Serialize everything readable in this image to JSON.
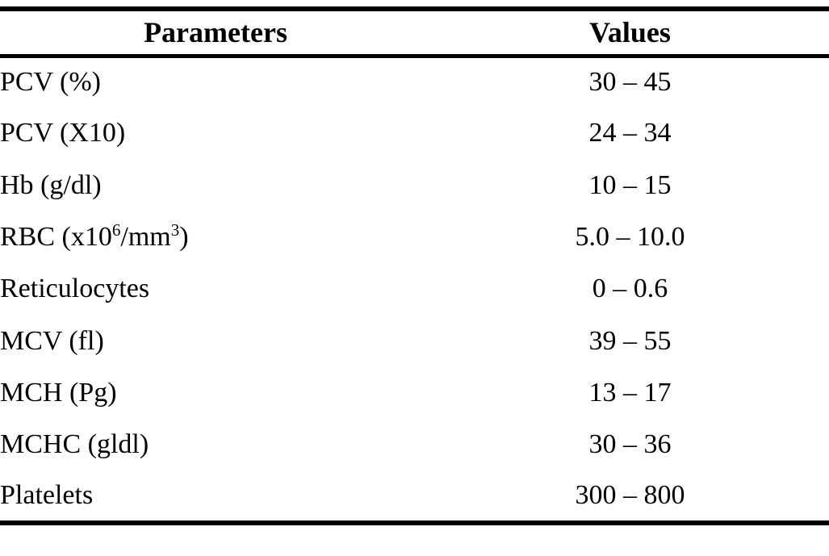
{
  "colors": {
    "text": "#000000",
    "background": "#ffffff",
    "rule": "#000000"
  },
  "table": {
    "columns": [
      "Parameters",
      "Values"
    ],
    "rows": [
      {
        "parameter": "PCV (%)",
        "value": "30 – 45"
      },
      {
        "parameter": "PCV (X10)",
        "value": "24 – 34"
      },
      {
        "parameter": "Hb (g/dl)",
        "value": "10 – 15"
      },
      {
        "parameter_parts": [
          "RBC (x10",
          "6",
          "/mm",
          "3",
          ")"
        ],
        "value": "5.0 – 10.0"
      },
      {
        "parameter": "Reticulocytes",
        "value": "0 – 0.6"
      },
      {
        "parameter": "MCV (fl)",
        "value": "39 – 55"
      },
      {
        "parameter": "MCH (Pg)",
        "value": "13 – 17"
      },
      {
        "parameter": "MCHC (gldl)",
        "value": "30 – 36"
      },
      {
        "parameter": "Platelets",
        "value": "300 – 800"
      }
    ]
  }
}
